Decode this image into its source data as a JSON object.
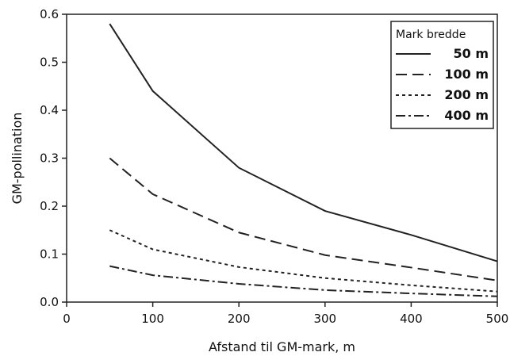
{
  "chart_data": {
    "type": "line",
    "title": "",
    "xlabel": "Afstand til GM-mark, m",
    "ylabel": "GM-pollination",
    "xlim": [
      0,
      500
    ],
    "ylim": [
      0,
      0.6
    ],
    "xticks": [
      0,
      100,
      200,
      300,
      400,
      500
    ],
    "yticks": [
      0.0,
      0.1,
      0.2,
      0.3,
      0.4,
      0.5,
      0.6
    ],
    "xtick_labels": [
      "0",
      "100",
      "200",
      "300",
      "400",
      "500"
    ],
    "ytick_labels": [
      "0.0",
      "0.1",
      "0.2",
      "0.3",
      "0.4",
      "0.5",
      "0.6"
    ],
    "grid": false,
    "legend": {
      "title": "Mark bredde",
      "placement": "top-right"
    },
    "series": [
      {
        "name": "50 m",
        "style": "solid",
        "x": [
          50,
          100,
          200,
          300,
          400,
          500
        ],
        "y": [
          0.58,
          0.44,
          0.28,
          0.19,
          0.14,
          0.085
        ]
      },
      {
        "name": "100 m",
        "style": "dashed",
        "x": [
          50,
          100,
          200,
          300,
          400,
          500
        ],
        "y": [
          0.3,
          0.225,
          0.145,
          0.098,
          0.072,
          0.045
        ]
      },
      {
        "name": "200 m",
        "style": "dotted",
        "x": [
          50,
          100,
          200,
          300,
          400,
          500
        ],
        "y": [
          0.15,
          0.11,
          0.073,
          0.05,
          0.035,
          0.022
        ]
      },
      {
        "name": "400 m",
        "style": "dashdot",
        "x": [
          50,
          100,
          200,
          300,
          400,
          500
        ],
        "y": [
          0.075,
          0.056,
          0.038,
          0.025,
          0.018,
          0.012
        ]
      }
    ]
  }
}
